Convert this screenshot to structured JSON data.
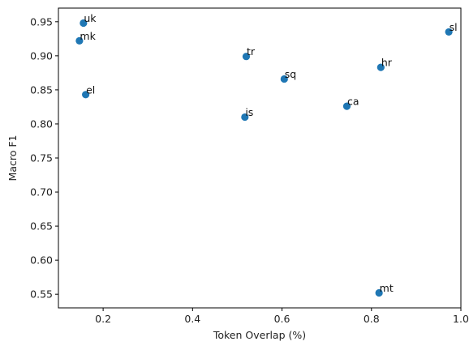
{
  "chart_data": {
    "type": "scatter",
    "title": "",
    "xlabel": "Token Overlap (%)",
    "ylabel": "Macro F1",
    "xlim": [
      0.1,
      1.0
    ],
    "ylim": [
      0.53,
      0.97
    ],
    "xticks": [
      0.2,
      0.4,
      0.6,
      0.8,
      1.0
    ],
    "xtick_labels": [
      "0.2",
      "0.4",
      "0.6",
      "0.8",
      "1.0"
    ],
    "yticks": [
      0.55,
      0.6,
      0.65,
      0.7,
      0.75,
      0.8,
      0.85,
      0.9,
      0.95
    ],
    "ytick_labels": [
      "0.55",
      "0.60",
      "0.65",
      "0.70",
      "0.75",
      "0.80",
      "0.85",
      "0.90",
      "0.95"
    ],
    "grid": false,
    "marker_color": "#1f77b4",
    "points": [
      {
        "label": "uk",
        "x": 0.156,
        "y": 0.948
      },
      {
        "label": "mk",
        "x": 0.147,
        "y": 0.922
      },
      {
        "label": "el",
        "x": 0.161,
        "y": 0.843
      },
      {
        "label": "tr",
        "x": 0.52,
        "y": 0.899
      },
      {
        "label": "is",
        "x": 0.517,
        "y": 0.81
      },
      {
        "label": "sq",
        "x": 0.605,
        "y": 0.866
      },
      {
        "label": "ca",
        "x": 0.745,
        "y": 0.826
      },
      {
        "label": "hr",
        "x": 0.821,
        "y": 0.883
      },
      {
        "label": "mt",
        "x": 0.817,
        "y": 0.552
      },
      {
        "label": "sl",
        "x": 0.973,
        "y": 0.935
      }
    ]
  }
}
